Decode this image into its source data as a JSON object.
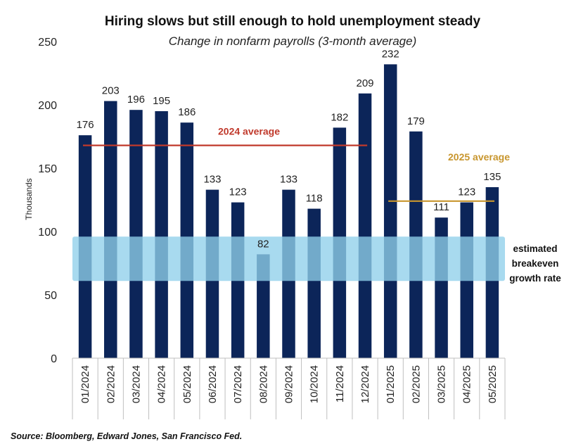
{
  "chart_data": {
    "type": "bar",
    "title": "Hiring slows but still enough to hold unemployment steady",
    "subtitle": "Change in nonfarm payrolls (3-month average)",
    "ylabel": "Thousands",
    "xlabel": "",
    "ylim": [
      0,
      250
    ],
    "yticks": [
      "0",
      "50",
      "100",
      "150",
      "200",
      "250"
    ],
    "categories": [
      "01/2024",
      "02/2024",
      "03/2024",
      "04/2024",
      "05/2024",
      "06/2024",
      "07/2024",
      "08/2024",
      "09/2024",
      "10/2024",
      "11/2024",
      "12/2024",
      "01/2025",
      "02/2025",
      "03/2025",
      "04/2025",
      "05/2025"
    ],
    "values": [
      176,
      203,
      196,
      195,
      186,
      133,
      123,
      82,
      133,
      118,
      182,
      209,
      232,
      179,
      111,
      123,
      135
    ],
    "value_labels": [
      "176",
      "203",
      "196",
      "195",
      "186",
      "133",
      "123",
      "82",
      "133",
      "118",
      "182",
      "209",
      "232",
      "179",
      "111",
      "123",
      "135"
    ],
    "bar_color": "#0c2559",
    "grid": false,
    "legend": "none",
    "reference_lines": [
      {
        "label": "2024 average",
        "value": 168,
        "from_index": 0,
        "to_index": 11,
        "color": "#c0392b",
        "label_color": "#c0392b"
      },
      {
        "label": "2025 average",
        "value": 124,
        "from_index": 12,
        "to_index": 16,
        "color": "#c8962e",
        "label_color": "#c8962e"
      }
    ],
    "band": {
      "label_lines": [
        "estimated",
        "breakeven",
        "growth rate"
      ],
      "from": 61,
      "to": 96,
      "color": "#8fd0ea"
    },
    "source": "Source: Bloomberg, Edward Jones, San Francisco Fed."
  }
}
